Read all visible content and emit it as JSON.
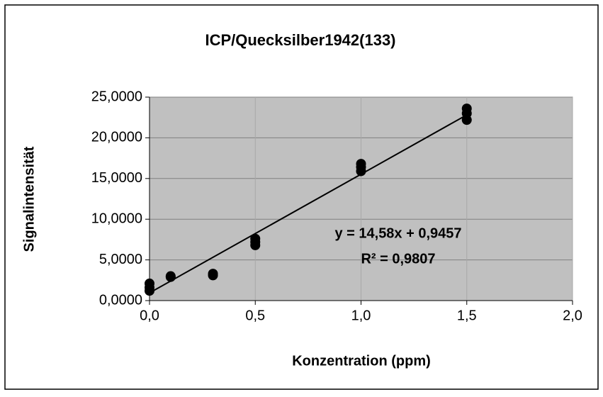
{
  "chart_data": {
    "type": "scatter",
    "title": "ICP/Quecksilber1942(133)",
    "x_label": "Konzentration (ppm)",
    "y_label": "Signalintensität",
    "series": [
      {
        "color": "#000000",
        "x": [
          0,
          0,
          0,
          0.1,
          0.1,
          0.3,
          0.3,
          0.5,
          0.5,
          0.5,
          1.0,
          1.0,
          1.0,
          1.5,
          1.5,
          1.5
        ],
        "values": [
          1.2,
          1.6,
          2.1,
          2.9,
          3.0,
          3.1,
          3.3,
          6.8,
          7.2,
          7.6,
          15.9,
          16.4,
          16.8,
          22.2,
          23.0,
          23.6
        ]
      }
    ],
    "trendline": {
      "slope": 14.58,
      "intercept": 0.9457,
      "color": "#000000",
      "equation": "y = 14,58x + 0,9457",
      "r_squared": "R² = 0,9807"
    },
    "xlim": [
      0,
      2
    ],
    "xticks": [
      {
        "value": 0,
        "label": "0,0"
      },
      {
        "value": 0.5,
        "label": "0,5"
      },
      {
        "value": 1,
        "label": "1,0"
      },
      {
        "value": 1.5,
        "label": "1,5"
      },
      {
        "value": 2,
        "label": "2,0"
      }
    ],
    "ylim": [
      0,
      25
    ],
    "yticks": [
      {
        "value": 0,
        "label": "0,0000"
      },
      {
        "value": 5,
        "label": "5,0000"
      },
      {
        "value": 10,
        "label": "10,0000"
      },
      {
        "value": 15,
        "label": "15,0000"
      },
      {
        "value": 20,
        "label": "20,0000"
      },
      {
        "value": 25,
        "label": "25,0000"
      }
    ],
    "grid": true,
    "plot_background": "#c0c0c0"
  }
}
